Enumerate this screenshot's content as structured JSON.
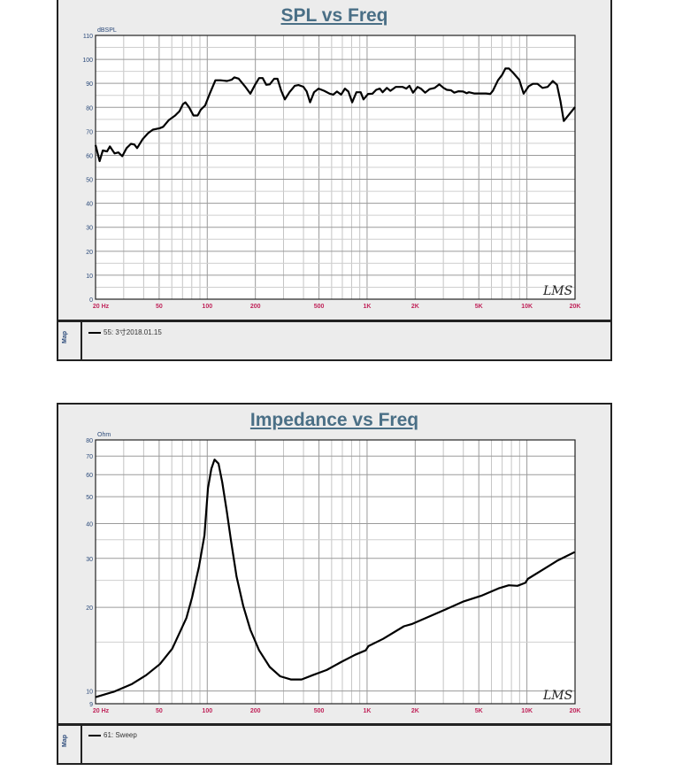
{
  "chart_data": [
    {
      "type": "line",
      "title": "SPL vs Freq",
      "ylabel": "dBSPL",
      "xscale": "log",
      "xlim": [
        20,
        20000
      ],
      "ylim": [
        0,
        110
      ],
      "yscale": "linear",
      "grid": true,
      "xticks": [
        {
          "v": 20,
          "label": "20  Hz"
        },
        {
          "v": 50,
          "label": "50"
        },
        {
          "v": 100,
          "label": "100"
        },
        {
          "v": 200,
          "label": "200"
        },
        {
          "v": 500,
          "label": "500"
        },
        {
          "v": 1000,
          "label": "1K"
        },
        {
          "v": 2000,
          "label": "2K"
        },
        {
          "v": 5000,
          "label": "5K"
        },
        {
          "v": 10000,
          "label": "10K"
        },
        {
          "v": 20000,
          "label": "20K"
        }
      ],
      "yticks": [
        0,
        10,
        20,
        30,
        40,
        50,
        60,
        70,
        80,
        90,
        100,
        110
      ],
      "watermark": "LMS",
      "legend_title": "Map",
      "series": [
        {
          "name": "55: 3寸2018.01.15",
          "color": "#000000",
          "x": [
            20,
            21.2,
            22.2,
            23.6,
            24.6,
            26.3,
            27.8,
            29.4,
            31.3,
            33.3,
            35,
            36.4,
            39.4,
            42.6,
            45.7,
            50.5,
            53,
            57.5,
            63,
            67,
            70.5,
            73,
            77,
            82,
            87,
            91,
            97,
            103.6,
            112.5,
            121,
            133,
            142,
            148,
            157,
            172,
            186,
            199,
            211,
            222,
            234,
            246,
            262,
            275,
            290,
            306,
            327,
            353,
            372,
            399,
            419,
            440,
            466,
            497,
            539,
            583,
            614,
            648,
            688,
            727,
            764,
            807,
            858,
            912,
            950,
            1015,
            1080,
            1140,
            1200,
            1250,
            1330,
            1400,
            1510,
            1670,
            1760,
            1840,
            1940,
            2070,
            2170,
            2310,
            2460,
            2650,
            2830,
            3010,
            3160,
            3350,
            3510,
            3740,
            3990,
            4190,
            4340,
            4670,
            5150,
            5540,
            5910,
            6120,
            6590,
            6990,
            7340,
            7720,
            8230,
            8950,
            9540,
            10270,
            10900,
            11630,
            12520,
            13480,
            14520,
            15420,
            16200,
            17020,
            20000
          ],
          "y": [
            64.3,
            57.6,
            62,
            61.6,
            63.7,
            60.8,
            61.2,
            59.6,
            63,
            64.8,
            64.5,
            63,
            66.7,
            69.2,
            70.7,
            71.3,
            71.9,
            74.7,
            76.6,
            78.4,
            81.4,
            82.1,
            80,
            76.6,
            76.6,
            79,
            80.8,
            85.7,
            91.3,
            91.3,
            91,
            91.5,
            92.5,
            92,
            88.8,
            85.7,
            89.4,
            92.2,
            92.2,
            89.4,
            89.6,
            91.9,
            91.9,
            87,
            83.3,
            86.3,
            89,
            89.3,
            88.6,
            86.6,
            82.1,
            86.3,
            87.8,
            86.9,
            85.7,
            85.3,
            86.6,
            85.3,
            87.8,
            86.6,
            82.1,
            86.3,
            86.3,
            83.3,
            85.6,
            85.7,
            87.3,
            87.8,
            86.3,
            88.1,
            86.9,
            88.5,
            88.5,
            87.8,
            89,
            86.1,
            88.5,
            87.8,
            86.1,
            87.6,
            88.1,
            89.6,
            88.1,
            87.3,
            87.1,
            86.1,
            86.7,
            86.6,
            85.9,
            86.3,
            85.8,
            85.8,
            85.8,
            85.6,
            86.9,
            91.3,
            93.5,
            96.2,
            96.2,
            94.3,
            91.5,
            85.7,
            88.8,
            89.8,
            89.8,
            88.1,
            88.5,
            91,
            89.4,
            82.6,
            74.3,
            80.1
          ]
        }
      ]
    },
    {
      "type": "line",
      "title": "Impedance vs Freq",
      "ylabel": "Ohm",
      "xscale": "log",
      "xlim": [
        20,
        20000
      ],
      "ylim": [
        9,
        80
      ],
      "yscale": "log",
      "grid": true,
      "xticks": [
        {
          "v": 20,
          "label": "20  Hz"
        },
        {
          "v": 50,
          "label": "50"
        },
        {
          "v": 100,
          "label": "100"
        },
        {
          "v": 200,
          "label": "200"
        },
        {
          "v": 500,
          "label": "500"
        },
        {
          "v": 1000,
          "label": "1K"
        },
        {
          "v": 2000,
          "label": "2K"
        },
        {
          "v": 5000,
          "label": "5K"
        },
        {
          "v": 10000,
          "label": "10K"
        },
        {
          "v": 20000,
          "label": "20K"
        }
      ],
      "yticks": [
        9,
        10,
        20,
        30,
        40,
        50,
        60,
        70,
        80
      ],
      "watermark": "LMS",
      "legend_title": "Map",
      "series": [
        {
          "name": "61: Sweep",
          "color": "#000000",
          "x": [
            20,
            26.2,
            33.8,
            41.4,
            50.6,
            60.4,
            74,
            80.3,
            88.8,
            96,
            101,
            106,
            111,
            117.6,
            124,
            132.5,
            141,
            152.5,
            168,
            186,
            211,
            246,
            286,
            333,
            389,
            455,
            559,
            686,
            843,
            980,
            1020,
            1260,
            1700,
            1900,
            2430,
            3130,
            4020,
            5170,
            6640,
            7700,
            8720,
            9780,
            10130,
            12700,
            15600,
            19900
          ],
          "y": [
            9.5,
            9.95,
            10.6,
            11.4,
            12.5,
            14.2,
            18.3,
            21.7,
            28.1,
            36.3,
            53.7,
            63,
            68,
            65.8,
            56.4,
            44.2,
            34.6,
            25.8,
            20.2,
            16.6,
            14,
            12.2,
            11.3,
            11,
            11,
            11.4,
            11.9,
            12.7,
            13.5,
            14,
            14.5,
            15.4,
            17.1,
            17.4,
            18.5,
            19.7,
            21,
            22,
            23.4,
            24,
            23.9,
            24.5,
            25.3,
            27.4,
            29.5,
            31.6
          ]
        }
      ]
    }
  ]
}
